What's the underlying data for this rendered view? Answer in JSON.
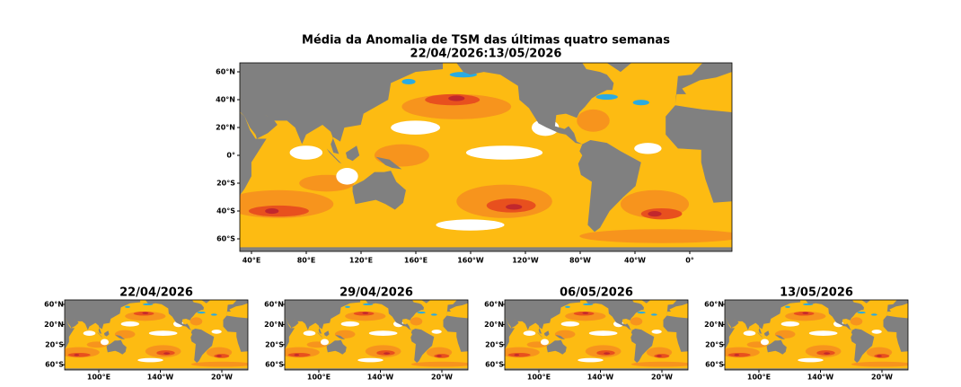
{
  "figure": {
    "title": "Média da Anomalia de TSM das últimas quatro semanas",
    "subtitle": "22/04/2026:13/05/2026",
    "main_map": {
      "lat_labels": [
        "60°N",
        "40°N",
        "20°N",
        "0°",
        "20°S",
        "40°S",
        "60°S"
      ],
      "lon_labels": [
        "40°E",
        "80°E",
        "120°E",
        "160°E",
        "160°W",
        "120°W",
        "80°W",
        "40°W",
        "0°"
      ]
    },
    "panels": [
      {
        "title": "22/04/2026",
        "lat_labels": [
          "60°N",
          "20°N",
          "20°S",
          "60°S"
        ],
        "lon_labels": [
          "100°E",
          "140°W",
          "20°W"
        ]
      },
      {
        "title": "29/04/2026",
        "lat_labels": [
          "60°N",
          "20°N",
          "20°S",
          "60°S"
        ],
        "lon_labels": [
          "100°E",
          "140°W",
          "20°W"
        ]
      },
      {
        "title": "06/05/2026",
        "lat_labels": [
          "60°N",
          "20°N",
          "20°S",
          "60°S"
        ],
        "lon_labels": [
          "100°E",
          "140°W",
          "20°W"
        ]
      },
      {
        "title": "13/05/2026",
        "lat_labels": [
          "60°N",
          "20°N",
          "20°S",
          "60°S"
        ],
        "lon_labels": [
          "100°E",
          "140°W",
          "20°W"
        ]
      }
    ]
  }
}
